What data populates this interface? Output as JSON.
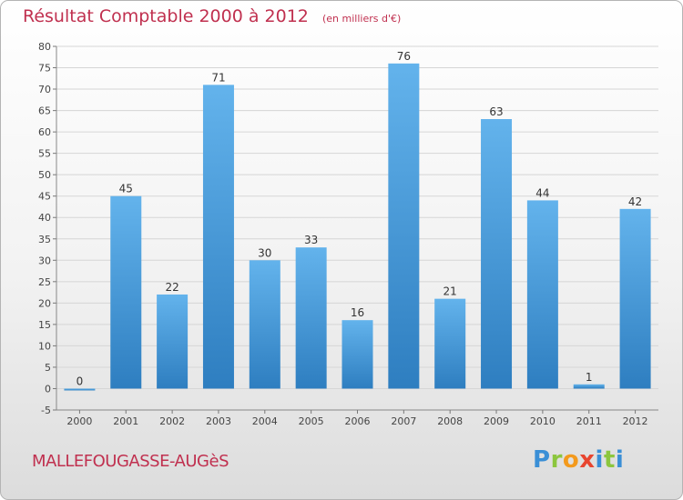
{
  "title": "Résultat Comptable 2000 à 2012",
  "subtitle": "(en milliers d'€)",
  "town": "MALLEFOUGASSE-AUGèS",
  "logo_letters": [
    "P",
    "r",
    "o",
    "x",
    "i",
    "t",
    "i"
  ],
  "colors": {
    "title": "#c0304f",
    "bar_top": "#63b3ec",
    "bar_bottom": "#2e7ec0",
    "grid": "#d6d6d6"
  },
  "chart_data": {
    "type": "bar",
    "title": "Résultat Comptable 2000 à 2012",
    "ylabel": "",
    "xlabel": "",
    "categories": [
      "2000",
      "2001",
      "2002",
      "2003",
      "2004",
      "2005",
      "2006",
      "2007",
      "2008",
      "2009",
      "2010",
      "2011",
      "2012"
    ],
    "values": [
      0,
      45,
      22,
      71,
      30,
      33,
      16,
      76,
      21,
      63,
      44,
      1,
      42
    ],
    "ylim": [
      -5,
      80
    ],
    "yticks": [
      -5,
      0,
      5,
      10,
      15,
      20,
      25,
      30,
      35,
      40,
      45,
      50,
      55,
      60,
      65,
      70,
      75,
      80
    ],
    "grid": true
  }
}
